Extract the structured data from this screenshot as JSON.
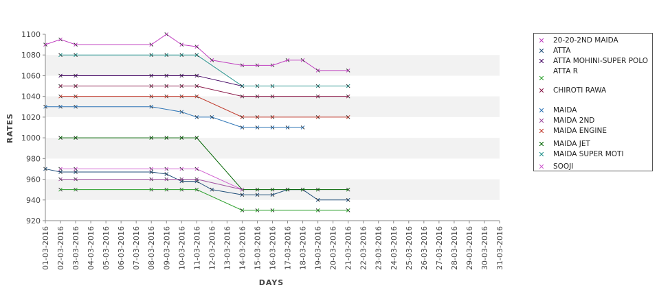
{
  "chart_data": {
    "type": "line",
    "xlabel": "DAYS",
    "ylabel": "RATES",
    "ylim": [
      920,
      1100
    ],
    "yticks": [
      920,
      940,
      960,
      980,
      1000,
      1020,
      1040,
      1060,
      1080,
      1100
    ],
    "categories": [
      "01-03-2016",
      "02-03-2016",
      "03-03-2016",
      "04-03-2016",
      "05-03-2016",
      "06-03-2016",
      "07-03-2016",
      "08-03-2016",
      "09-03-2016",
      "10-03-2016",
      "11-03-2016",
      "12-03-2016",
      "13-03-2016",
      "14-03-2016",
      "15-03-2016",
      "16-03-2016",
      "17-03-2016",
      "18-03-2016",
      "19-03-2016",
      "20-03-2016",
      "21-03-2016",
      "22-03-2016",
      "23-03-2016",
      "24-03-2016",
      "25-03-2016",
      "26-03-2016",
      "27-03-2016",
      "28-03-2016",
      "29-03-2016",
      "30-03-2016",
      "31-03-2016"
    ],
    "grid": "alternating horizontal bands",
    "legend_position": "right",
    "series": [
      {
        "name": "20-20-2ND MAIDA",
        "color": "#c040c0",
        "points": [
          [
            "01-03-2016",
            1090
          ],
          [
            "02-03-2016",
            1095
          ],
          [
            "03-03-2016",
            1090
          ],
          [
            "08-03-2016",
            1090
          ],
          [
            "09-03-2016",
            1100
          ],
          [
            "10-03-2016",
            1090
          ],
          [
            "11-03-2016",
            1088
          ],
          [
            "12-03-2016",
            1075
          ],
          [
            "14-03-2016",
            1070
          ],
          [
            "15-03-2016",
            1070
          ],
          [
            "16-03-2016",
            1070
          ],
          [
            "17-03-2016",
            1075
          ],
          [
            "18-03-2016",
            1075
          ],
          [
            "19-03-2016",
            1065
          ],
          [
            "21-03-2016",
            1065
          ]
        ]
      },
      {
        "name": "ATTA",
        "color": "#1f4e79",
        "points": [
          [
            "01-03-2016",
            970
          ],
          [
            "02-03-2016",
            967
          ],
          [
            "03-03-2016",
            967
          ],
          [
            "08-03-2016",
            967
          ],
          [
            "09-03-2016",
            965
          ],
          [
            "10-03-2016",
            958
          ],
          [
            "11-03-2016",
            958
          ],
          [
            "12-03-2016",
            950
          ],
          [
            "14-03-2016",
            945
          ],
          [
            "15-03-2016",
            945
          ],
          [
            "16-03-2016",
            945
          ],
          [
            "17-03-2016",
            950
          ],
          [
            "18-03-2016",
            950
          ],
          [
            "19-03-2016",
            940
          ],
          [
            "21-03-2016",
            940
          ]
        ]
      },
      {
        "name": "ATTA MOHINI-SUPER POLO",
        "color": "#400060",
        "points": [
          [
            "02-03-2016",
            1060
          ],
          [
            "03-03-2016",
            1060
          ],
          [
            "08-03-2016",
            1060
          ],
          [
            "09-03-2016",
            1060
          ],
          [
            "10-03-2016",
            1060
          ],
          [
            "11-03-2016",
            1060
          ],
          [
            "14-03-2016",
            1050
          ]
        ]
      },
      {
        "name": "ATTA R",
        "color": "#2ca02c",
        "points": [
          [
            "02-03-2016",
            950
          ],
          [
            "03-03-2016",
            950
          ],
          [
            "08-03-2016",
            950
          ],
          [
            "09-03-2016",
            950
          ],
          [
            "10-03-2016",
            950
          ],
          [
            "11-03-2016",
            950
          ],
          [
            "14-03-2016",
            930
          ],
          [
            "15-03-2016",
            930
          ],
          [
            "16-03-2016",
            930
          ],
          [
            "19-03-2016",
            930
          ],
          [
            "21-03-2016",
            930
          ]
        ]
      },
      {
        "name": "CHIROTI RAWA",
        "color": "#8b1a4a",
        "points": [
          [
            "02-03-2016",
            1050
          ],
          [
            "03-03-2016",
            1050
          ],
          [
            "08-03-2016",
            1050
          ],
          [
            "09-03-2016",
            1050
          ],
          [
            "10-03-2016",
            1050
          ],
          [
            "11-03-2016",
            1050
          ],
          [
            "14-03-2016",
            1040
          ],
          [
            "15-03-2016",
            1040
          ],
          [
            "16-03-2016",
            1040
          ],
          [
            "19-03-2016",
            1040
          ],
          [
            "21-03-2016",
            1040
          ]
        ]
      },
      {
        "name": "MAIDA",
        "color": "#2e75b6",
        "points": [
          [
            "01-03-2016",
            1030
          ],
          [
            "02-03-2016",
            1030
          ],
          [
            "03-03-2016",
            1030
          ],
          [
            "08-03-2016",
            1030
          ],
          [
            "10-03-2016",
            1025
          ],
          [
            "11-03-2016",
            1020
          ],
          [
            "12-03-2016",
            1020
          ],
          [
            "14-03-2016",
            1010
          ],
          [
            "15-03-2016",
            1010
          ],
          [
            "16-03-2016",
            1010
          ],
          [
            "17-03-2016",
            1010
          ],
          [
            "18-03-2016",
            1010
          ]
        ]
      },
      {
        "name": "MAIDA 2ND",
        "color": "#a050a0",
        "points": [
          [
            "02-03-2016",
            960
          ],
          [
            "03-03-2016",
            960
          ],
          [
            "08-03-2016",
            960
          ],
          [
            "09-03-2016",
            960
          ],
          [
            "10-03-2016",
            960
          ],
          [
            "11-03-2016",
            960
          ],
          [
            "14-03-2016",
            950
          ]
        ]
      },
      {
        "name": "MAIDA ENGINE",
        "color": "#c0392b",
        "points": [
          [
            "02-03-2016",
            1040
          ],
          [
            "03-03-2016",
            1040
          ],
          [
            "08-03-2016",
            1040
          ],
          [
            "09-03-2016",
            1040
          ],
          [
            "10-03-2016",
            1040
          ],
          [
            "11-03-2016",
            1040
          ],
          [
            "14-03-2016",
            1020
          ],
          [
            "15-03-2016",
            1020
          ],
          [
            "16-03-2016",
            1020
          ],
          [
            "19-03-2016",
            1020
          ],
          [
            "21-03-2016",
            1020
          ]
        ]
      },
      {
        "name": "MAIDA JET",
        "color": "#006400",
        "points": [
          [
            "02-03-2016",
            1000
          ],
          [
            "03-03-2016",
            1000
          ],
          [
            "08-03-2016",
            1000
          ],
          [
            "09-03-2016",
            1000
          ],
          [
            "10-03-2016",
            1000
          ],
          [
            "11-03-2016",
            1000
          ],
          [
            "14-03-2016",
            950
          ],
          [
            "15-03-2016",
            950
          ],
          [
            "16-03-2016",
            950
          ],
          [
            "17-03-2016",
            950
          ],
          [
            "18-03-2016",
            950
          ],
          [
            "19-03-2016",
            950
          ],
          [
            "21-03-2016",
            950
          ]
        ]
      },
      {
        "name": "MAIDA SUPER MOTI",
        "color": "#20908a",
        "points": [
          [
            "02-03-2016",
            1080
          ],
          [
            "03-03-2016",
            1080
          ],
          [
            "08-03-2016",
            1080
          ],
          [
            "09-03-2016",
            1080
          ],
          [
            "10-03-2016",
            1080
          ],
          [
            "11-03-2016",
            1080
          ],
          [
            "14-03-2016",
            1050
          ],
          [
            "15-03-2016",
            1050
          ],
          [
            "16-03-2016",
            1050
          ],
          [
            "19-03-2016",
            1050
          ],
          [
            "21-03-2016",
            1050
          ]
        ]
      },
      {
        "name": "SOOJI",
        "color": "#d05fd0",
        "points": [
          [
            "02-03-2016",
            970
          ],
          [
            "03-03-2016",
            970
          ],
          [
            "08-03-2016",
            970
          ],
          [
            "09-03-2016",
            970
          ],
          [
            "10-03-2016",
            970
          ],
          [
            "11-03-2016",
            970
          ],
          [
            "14-03-2016",
            950
          ]
        ]
      }
    ]
  }
}
